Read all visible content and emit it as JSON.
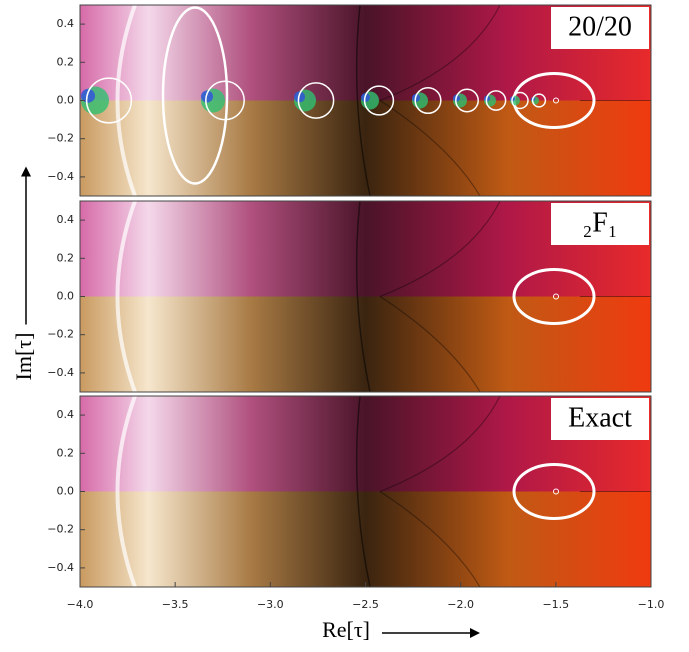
{
  "chart_data": [
    {
      "type": "domain-coloring",
      "panel_label": "20/20",
      "xlim": [
        -4.0,
        -1.0
      ],
      "ylim": [
        -0.5,
        0.5
      ],
      "yticks": [
        0.4,
        0.2,
        {
          "value": 0,
          "label": "0.0"
        },
        {
          "value": -0.2,
          "label": "−0.2"
        },
        {
          "value": -0.4,
          "label": "−0.4"
        }
      ]
    },
    {
      "type": "domain-coloring",
      "panel_label": "₂F₁",
      "ylabel": "Im[τ]",
      "xlim": [
        -4.0,
        -1.0
      ],
      "ylim": [
        -0.5,
        0.5
      ],
      "yticks": [
        0.4,
        0.2,
        {
          "value": 0,
          "label": "0.0"
        },
        {
          "value": -0.2,
          "label": "−0.2"
        },
        {
          "value": -0.4,
          "label": "−0.4"
        }
      ]
    },
    {
      "type": "domain-coloring",
      "panel_label": "Exact",
      "xlabel": "Re[τ]",
      "xlim": [
        -4.0,
        -1.0
      ],
      "ylim": [
        -0.5,
        0.5
      ],
      "yticks": [
        0.4,
        0.2,
        {
          "value": 0,
          "label": "0.0"
        },
        {
          "value": -0.2,
          "label": "−0.2"
        },
        {
          "value": -0.4,
          "label": "−0.4"
        }
      ],
      "xticks": [
        {
          "value": -4,
          "label": "−4.0"
        },
        {
          "value": -3.5,
          "label": "−3.5"
        },
        {
          "value": -3,
          "label": "−3.0"
        },
        {
          "value": -2.5,
          "label": "−2.5"
        },
        {
          "value": -2,
          "label": "−2.0"
        },
        {
          "value": -1.5,
          "label": "−1.5"
        },
        {
          "value": -1,
          "label": "−1.0"
        }
      ]
    }
  ]
}
